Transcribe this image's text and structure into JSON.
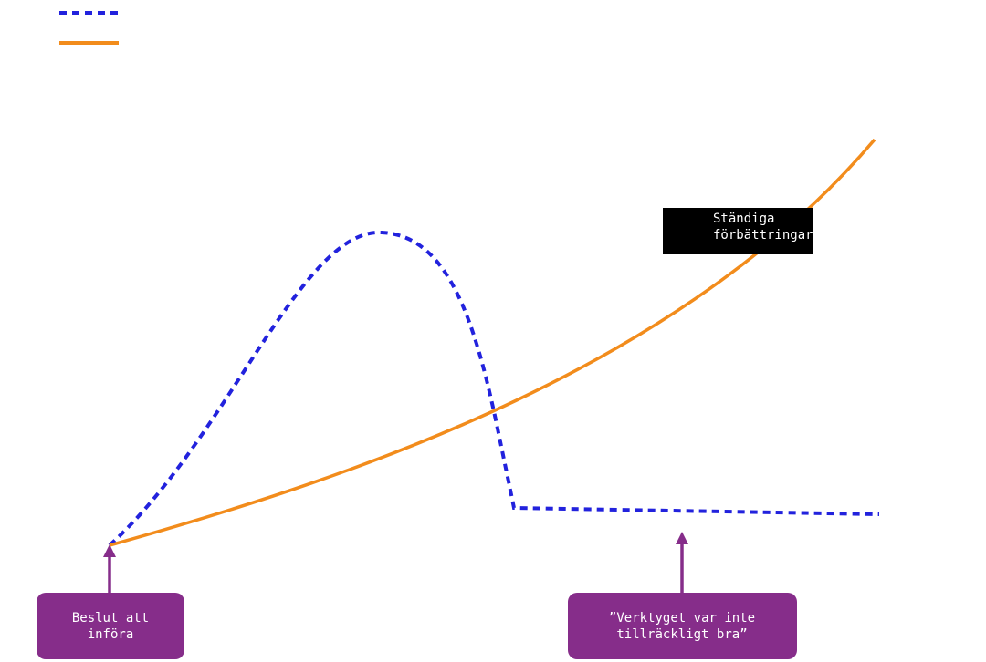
{
  "annotation": {
    "lines": [
      "Ständiga",
      "förbättringar"
    ]
  },
  "callouts": [
    {
      "lines": [
        "Beslut att",
        "införa"
      ]
    },
    {
      "lines": [
        "”Verktyget var inte",
        "tillräckligt bra”"
      ]
    }
  ]
}
